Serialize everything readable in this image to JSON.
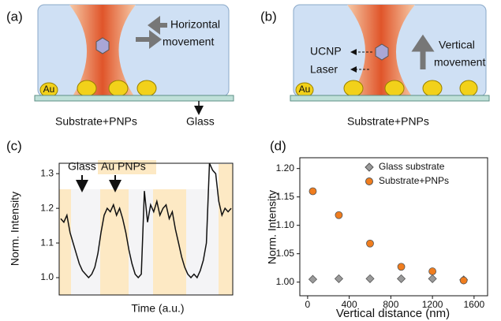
{
  "panel_a": {
    "label": "(a)",
    "annotation": [
      "Horizontal",
      "movement"
    ],
    "au": "Au",
    "substrate": "Substrate+PNPs",
    "glass": "Glass"
  },
  "panel_b": {
    "label": "(b)",
    "ucnp": "UCNP",
    "laser": "Laser",
    "annotation": [
      "Vertical",
      "movement"
    ],
    "au": "Au",
    "substrate": "Substrate+PNPs"
  },
  "chart_data": [
    {
      "type": "line",
      "panel_label": "(c)",
      "ylabel": "Norm. Intensity",
      "xlabel": "Time (a.u.)",
      "annotations": [
        "Glass",
        "Au PNPs"
      ],
      "color": "#111111",
      "values": [
        1.17,
        1.16,
        1.18,
        1.13,
        1.1,
        1.07,
        1.04,
        1.02,
        1.01,
        1.0,
        1.01,
        1.03,
        1.07,
        1.13,
        1.18,
        1.2,
        1.19,
        1.21,
        1.18,
        1.2,
        1.17,
        1.13,
        1.08,
        1.04,
        1.01,
        1.0,
        1.01,
        1.25,
        1.16,
        1.21,
        1.19,
        1.22,
        1.18,
        1.2,
        1.21,
        1.17,
        1.19,
        1.14,
        1.1,
        1.06,
        1.03,
        1.01,
        1.0,
        1.01,
        1.0,
        1.02,
        1.05,
        1.1,
        1.33,
        1.31,
        1.3,
        1.22,
        1.18,
        1.2,
        1.19,
        1.2
      ],
      "ylim": [
        0.95,
        1.33
      ],
      "yticks": [
        {
          "value": 1.0,
          "label": "1.0"
        },
        1.1,
        1.2,
        1.3
      ]
    },
    {
      "type": "scatter",
      "panel_label": "(d)",
      "ylabel": "Norm. Intensity",
      "xlabel": "Vertical distance (nm)",
      "legend": "upper right",
      "x": [
        50,
        300,
        600,
        900,
        1200,
        1500
      ],
      "series": [
        {
          "name": "Glass substrate",
          "color": "#9a9a9a",
          "marker": "diamond",
          "values": [
            1.005,
            1.006,
            1.006,
            1.006,
            1.006,
            1.004
          ]
        },
        {
          "name": "Substrate+PNPs",
          "color": "#f07d1e",
          "marker": "circle",
          "values": [
            1.16,
            1.118,
            1.068,
            1.027,
            1.019,
            1.003
          ]
        }
      ],
      "xlim": [
        -75,
        1730
      ],
      "ylim": [
        0.976,
        1.219
      ],
      "xticks": [
        0,
        400,
        800,
        1200,
        1600
      ],
      "yticks": [
        {
          "value": 1.0,
          "label": "1.00"
        },
        1.05,
        {
          "value": 1.1,
          "label": "1.10"
        },
        1.15,
        {
          "value": 1.2,
          "label": "1.20"
        }
      ]
    }
  ]
}
